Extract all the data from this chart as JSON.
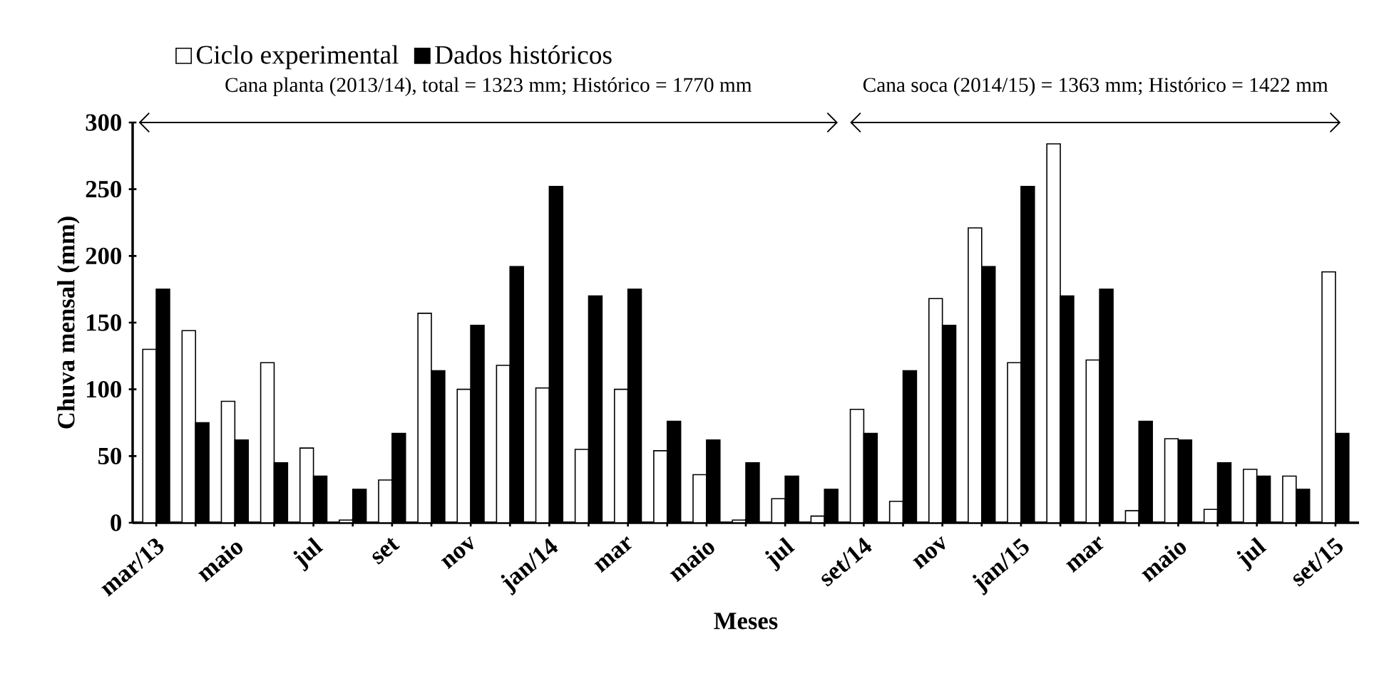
{
  "chart_data": {
    "type": "bar",
    "xlabel": "Meses",
    "ylabel": "Chuva mensal (mm)",
    "categories": [
      "mar/13",
      null,
      "maio",
      null,
      "jul",
      null,
      "set",
      null,
      "nov",
      null,
      "jan/14",
      null,
      "mar",
      null,
      "maio",
      null,
      "jul",
      null,
      "set/14",
      null,
      "nov",
      null,
      "jan/15",
      null,
      "mar",
      null,
      "maio",
      null,
      "jul",
      null,
      "set/15"
    ],
    "series": [
      {
        "name": "Ciclo experimental",
        "color": "#ffffff",
        "values": [
          130,
          144,
          91,
          120,
          56,
          2,
          32,
          157,
          100,
          118,
          101,
          55,
          100,
          54,
          36,
          2,
          18,
          5,
          85,
          16,
          168,
          221,
          120,
          284,
          122,
          9,
          63,
          10,
          40,
          35,
          188
        ]
      },
      {
        "name": "Dados históricos",
        "color": "#000000",
        "values": [
          175,
          75,
          62,
          45,
          35,
          25,
          67,
          114,
          148,
          192,
          252,
          170,
          175,
          76,
          62,
          45,
          35,
          25,
          67,
          114,
          148,
          192,
          252,
          170,
          175,
          76,
          62,
          45,
          35,
          25,
          67
        ]
      }
    ],
    "ylim": [
      0,
      300
    ],
    "yticks": [
      0,
      50,
      100,
      150,
      200,
      250,
      300
    ],
    "legend": "top left",
    "annotations": [
      "Cana planta (2013/14), total = 1323 mm; Histórico = 1770 mm",
      "Cana soca (2014/15) = 1363 mm; Histórico = 1422 mm"
    ]
  }
}
